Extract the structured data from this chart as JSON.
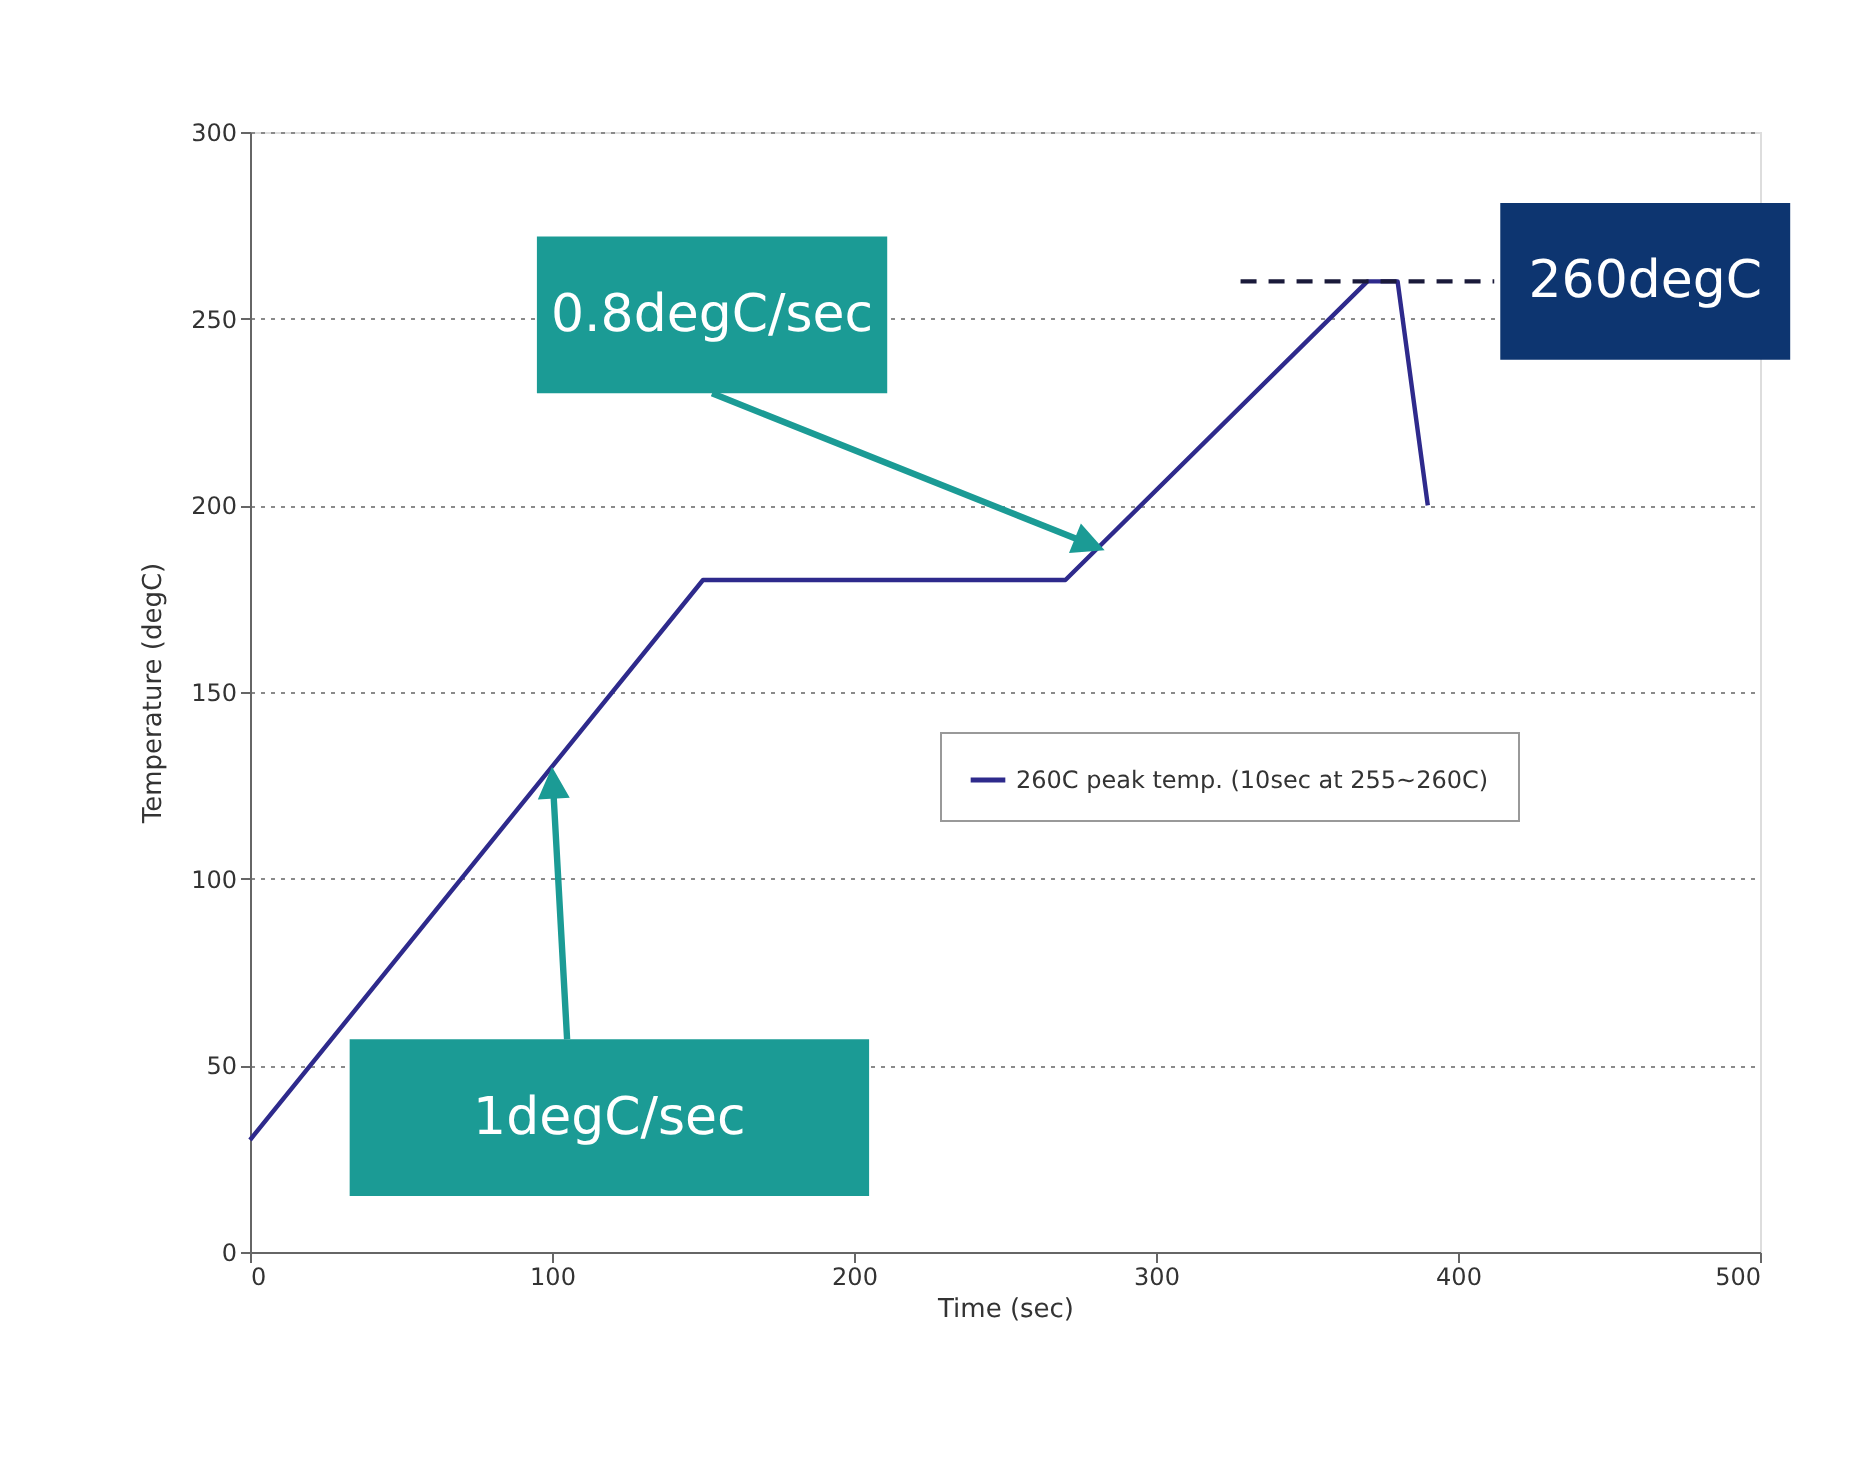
{
  "chart_data": {
    "type": "line",
    "xlabel": "Time (sec)",
    "ylabel": "Temperature (degC)",
    "xlim": [
      0,
      500
    ],
    "xticks": [
      0,
      100,
      200,
      300,
      400,
      500
    ],
    "ylim": [
      0,
      300
    ],
    "yticks": [
      0,
      50,
      100,
      150,
      200,
      250,
      300
    ],
    "grid": "y",
    "legend": "right",
    "marker": "none",
    "series": [
      {
        "name": "260C peak temp. (10sec at 255~260C)",
        "color": "#2e2a8c",
        "line_style": "solid",
        "x": [
          0,
          150,
          270,
          370,
          380,
          390
        ],
        "values": [
          30,
          180,
          180,
          260,
          260,
          200
        ]
      },
      {
        "color": "#1a1a3a",
        "line_style": "dashed",
        "x": [
          328,
          412
        ],
        "values": [
          260,
          260
        ]
      }
    ],
    "annotations": [
      "0.8degC/sec",
      "1degC/sec",
      "260degC"
    ]
  }
}
